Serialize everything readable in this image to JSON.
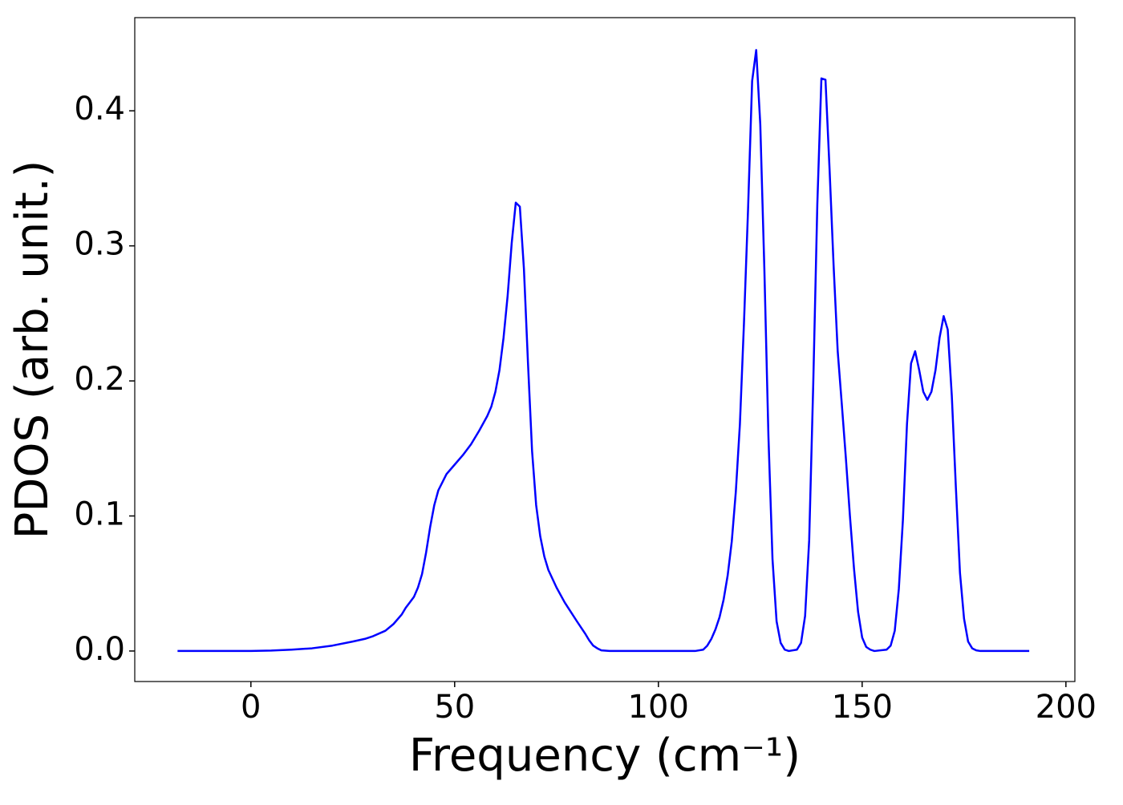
{
  "chart_data": {
    "type": "line",
    "x_label": "Frequency (cm⁻¹)",
    "y_label": "PDOS (arb. unit.)",
    "x": [
      -18,
      0,
      5,
      10,
      15,
      20,
      25,
      28,
      30,
      33,
      35,
      37,
      38,
      40,
      41,
      42,
      43,
      44,
      45,
      46,
      47,
      48,
      50,
      52,
      54,
      56,
      58,
      59,
      60,
      61,
      62,
      63,
      64,
      65,
      66,
      67,
      68,
      69,
      70,
      71,
      72,
      73,
      75,
      77,
      80,
      82,
      83,
      84,
      85,
      86,
      88,
      109,
      111,
      112,
      113,
      114,
      115,
      116,
      117,
      118,
      119,
      120,
      121,
      122,
      123,
      124,
      125,
      126,
      127,
      128,
      129,
      130,
      131,
      132,
      134,
      135,
      136,
      137,
      138,
      139,
      140,
      141,
      142,
      143,
      144,
      145,
      146,
      147,
      148,
      149,
      150,
      151,
      152,
      153,
      156,
      157,
      158,
      159,
      160,
      161,
      162,
      163,
      164,
      165,
      166,
      167,
      168,
      169,
      170,
      171,
      172,
      173,
      174,
      175,
      176,
      177,
      178,
      179,
      191
    ],
    "series": [
      {
        "name": "PDOS",
        "color": "#0000ff",
        "values": [
          0,
          0,
          0.0003,
          0.001,
          0.002,
          0.004,
          0.007,
          0.009,
          0.011,
          0.015,
          0.02,
          0.027,
          0.032,
          0.04,
          0.047,
          0.057,
          0.073,
          0.092,
          0.108,
          0.119,
          0.125,
          0.131,
          0.138,
          0.145,
          0.153,
          0.163,
          0.174,
          0.181,
          0.192,
          0.208,
          0.232,
          0.263,
          0.302,
          0.332,
          0.329,
          0.283,
          0.213,
          0.148,
          0.108,
          0.085,
          0.07,
          0.06,
          0.047,
          0.036,
          0.022,
          0.013,
          0.008,
          0.004,
          0.002,
          0.0005,
          0,
          0,
          0.001,
          0.004,
          0.009,
          0.016,
          0.025,
          0.038,
          0.056,
          0.081,
          0.118,
          0.168,
          0.243,
          0.327,
          0.422,
          0.445,
          0.39,
          0.283,
          0.159,
          0.068,
          0.022,
          0.006,
          0.001,
          0,
          0.001,
          0.006,
          0.026,
          0.082,
          0.198,
          0.331,
          0.424,
          0.423,
          0.357,
          0.285,
          0.222,
          0.183,
          0.143,
          0.1,
          0.061,
          0.029,
          0.01,
          0.003,
          0.001,
          0,
          0.001,
          0.004,
          0.015,
          0.046,
          0.097,
          0.168,
          0.213,
          0.222,
          0.208,
          0.192,
          0.186,
          0.192,
          0.208,
          0.232,
          0.248,
          0.238,
          0.189,
          0.121,
          0.058,
          0.024,
          0.007,
          0.002,
          0.0005,
          0,
          0
        ]
      }
    ],
    "xlim": [
      -28.5,
      202.2
    ],
    "ylim": [
      -0.0226,
      0.469
    ],
    "xticks": [
      0,
      50,
      100,
      150,
      200
    ],
    "yticks": [
      {
        "value": 0,
        "label": "0.0"
      },
      0.1,
      0.2,
      0.3,
      0.4
    ],
    "grid": false
  }
}
